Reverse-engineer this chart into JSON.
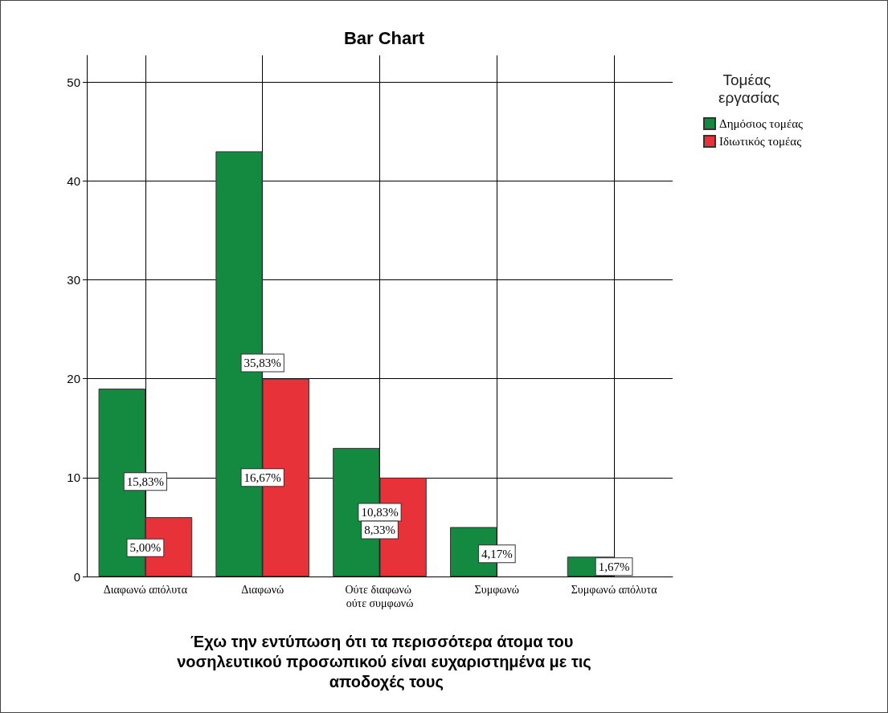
{
  "chart_data": {
    "type": "bar",
    "title": "Bar Chart",
    "xlabel": "Έχω την εντύπωση ότι τα περισσότερα άτομα του νοσηλευτικού προσωπικού είναι ευχαριστημένα με τις αποδοχές τους",
    "legend_title": "Τομέας εργασίας",
    "categories": [
      "Διαφωνώ απόλυτα",
      "Διαφωνώ",
      "Ούτε διαφωνώ ούτε συμφωνώ",
      "Συμφωνώ",
      "Συμφωνώ απόλυτα"
    ],
    "series": [
      {
        "name": "Δημόσιος τομέας",
        "color": "#138a40",
        "values": [
          19,
          43,
          13,
          5,
          2
        ]
      },
      {
        "name": "Ιδιωτικός τομέας",
        "color": "#e8323a",
        "values": [
          6,
          20,
          10,
          null,
          null
        ]
      }
    ],
    "annotations": [
      {
        "text": "15,83%",
        "x": "Διαφωνώ απόλυτα",
        "y": 9.6
      },
      {
        "text": "5,00%",
        "x": "Διαφωνώ απόλυτα",
        "y": 2.9
      },
      {
        "text": "35,83%",
        "x": "Διαφωνώ",
        "y": 21.6
      },
      {
        "text": "16,67%",
        "x": "Διαφωνώ",
        "y": 10
      },
      {
        "text": "10,83%",
        "x": "Ούτε διαφωνώ ούτε συμφωνώ",
        "y": 6.5
      },
      {
        "text": "8,33%",
        "x": "Ούτε διαφωνώ ούτε συμφωνώ",
        "y": 4.7
      },
      {
        "text": "4,17%",
        "x": "Συμφωνώ",
        "y": 2.3
      },
      {
        "text": "1,67%",
        "x": "Συμφωνώ απόλυτα",
        "y": 1
      }
    ],
    "ylim": [
      0,
      52.7
    ],
    "yticks": [
      0,
      10,
      20,
      30,
      40,
      50
    ],
    "grid": true,
    "legend": "top right"
  }
}
